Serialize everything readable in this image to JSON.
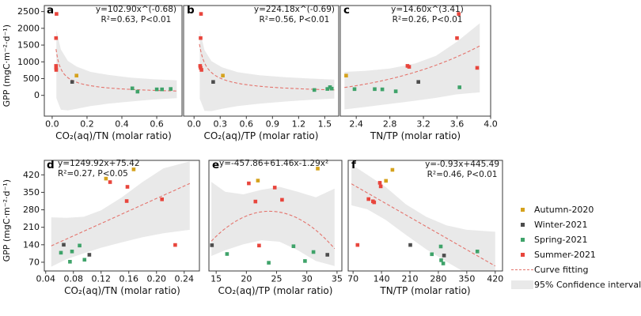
{
  "figure": {
    "ylabel": "GPP (mgC·m⁻²·d⁻¹)",
    "colors": {
      "autumn": "#d5a21d",
      "winter": "#4d4d4d",
      "spring": "#3fa36a",
      "summer": "#e8453c",
      "curve": "#e4736c",
      "band": "#e9e9e9",
      "axis": "#3a3a3a"
    },
    "legend": [
      {
        "label": "Autumn-2020",
        "color": "#d5a21d",
        "type": "square"
      },
      {
        "label": "Winter-2021",
        "color": "#4d4d4d",
        "type": "square"
      },
      {
        "label": "Spring-2021",
        "color": "#3fa36a",
        "type": "square"
      },
      {
        "label": "Summer-2021",
        "color": "#e8453c",
        "type": "square"
      },
      {
        "label": "Curve fitting",
        "color": "#e4736c",
        "type": "dash"
      },
      {
        "label": "95% Confidence interval",
        "color": "#e9e9e9",
        "type": "band"
      }
    ]
  },
  "chart_data": [
    {
      "id": "a",
      "type": "scatter",
      "equation": "y=102.90x^(-0.68)",
      "stats": "R²=0.63, P<0.01",
      "xlabel": "CO₂(aq)/TN (molar ratio)",
      "xlim": [
        -0.045,
        0.745
      ],
      "ylim": [
        -620,
        2680
      ],
      "xticks": [
        [
          0,
          "0.0"
        ],
        [
          0.2,
          "0.2"
        ],
        [
          0.4,
          "0.4"
        ],
        [
          0.6,
          "0.6"
        ]
      ],
      "yticks": [
        [
          0,
          "0"
        ],
        [
          500,
          "500"
        ],
        [
          1000,
          "1000"
        ],
        [
          1500,
          "1500"
        ],
        [
          2000,
          "2000"
        ],
        [
          2500,
          "2500"
        ]
      ],
      "show_ylabels": true,
      "curve": {
        "kind": "power",
        "p": [
          102.9,
          -0.68
        ],
        "range": [
          0.022,
          0.715
        ]
      },
      "band": [
        [
          0.024,
          -80,
          1950
        ],
        [
          0.05,
          -430,
          1370
        ],
        [
          0.09,
          -450,
          1030
        ],
        [
          0.14,
          -400,
          860
        ],
        [
          0.22,
          -320,
          700
        ],
        [
          0.32,
          -250,
          610
        ],
        [
          0.45,
          -185,
          530
        ],
        [
          0.58,
          -125,
          480
        ],
        [
          0.715,
          -85,
          450
        ]
      ],
      "series": {
        "autumn": [
          [
            0.14,
            590
          ]
        ],
        "winter": [
          [
            0.115,
            400
          ]
        ],
        "spring": [
          [
            0.46,
            210
          ],
          [
            0.49,
            110
          ],
          [
            0.6,
            180
          ],
          [
            0.63,
            180
          ],
          [
            0.68,
            190
          ]
        ],
        "summer": [
          [
            0.025,
            2430
          ],
          [
            0.022,
            1710
          ],
          [
            0.022,
            880
          ],
          [
            0.022,
            820
          ],
          [
            0.023,
            760
          ]
        ]
      }
    },
    {
      "id": "b",
      "type": "scatter",
      "equation": "y=224.18x^(-0.69)",
      "stats": "R²=0.56, P<0.01",
      "xlabel": "CO₂(aq)/TP (molar ratio)",
      "xlim": [
        -0.12,
        1.66
      ],
      "ylim": [
        -620,
        2680
      ],
      "xticks": [
        [
          0,
          "0.0"
        ],
        [
          0.3,
          "0.3"
        ],
        [
          0.6,
          "0.6"
        ],
        [
          0.9,
          "0.9"
        ],
        [
          1.2,
          "1.2"
        ],
        [
          1.5,
          "1.5"
        ]
      ],
      "yticks": [
        [
          0,
          "0"
        ],
        [
          500,
          "500"
        ],
        [
          1000,
          "1000"
        ],
        [
          1500,
          "1500"
        ],
        [
          2000,
          "2000"
        ],
        [
          2500,
          "2500"
        ]
      ],
      "show_ylabels": false,
      "curve": {
        "kind": "power",
        "p": [
          224.18,
          -0.69
        ],
        "range": [
          0.062,
          1.61
        ]
      },
      "band": [
        [
          0.065,
          -100,
          1950
        ],
        [
          0.12,
          -460,
          1350
        ],
        [
          0.2,
          -470,
          1020
        ],
        [
          0.32,
          -400,
          840
        ],
        [
          0.5,
          -320,
          690
        ],
        [
          0.75,
          -250,
          600
        ],
        [
          1.05,
          -185,
          540
        ],
        [
          1.35,
          -130,
          500
        ],
        [
          1.61,
          -95,
          470
        ]
      ],
      "series": {
        "autumn": [
          [
            0.33,
            590
          ]
        ],
        "winter": [
          [
            0.22,
            400
          ]
        ],
        "spring": [
          [
            1.38,
            160
          ],
          [
            1.53,
            190
          ],
          [
            1.56,
            245
          ],
          [
            1.58,
            200
          ]
        ],
        "summer": [
          [
            0.08,
            2430
          ],
          [
            0.075,
            1710
          ],
          [
            0.07,
            880
          ],
          [
            0.075,
            820
          ],
          [
            0.085,
            760
          ]
        ]
      }
    },
    {
      "id": "c",
      "type": "scatter",
      "equation": "y=14.60x^(3.41)",
      "stats": "R²=0.26, P<0.01",
      "xlabel": "TN/TP (molar ratio)",
      "xlim": [
        2.21,
        4.0
      ],
      "ylim": [
        -620,
        2680
      ],
      "xticks": [
        [
          2.4,
          "2.4"
        ],
        [
          2.8,
          "2.8"
        ],
        [
          3.2,
          "3.2"
        ],
        [
          3.6,
          "3.6"
        ],
        [
          4.0,
          "4.0"
        ]
      ],
      "yticks": [
        [
          0,
          "0"
        ],
        [
          500,
          "500"
        ],
        [
          1000,
          "1000"
        ],
        [
          1500,
          "1500"
        ],
        [
          2000,
          "2000"
        ],
        [
          2500,
          "2500"
        ]
      ],
      "show_ylabels": false,
      "curve": {
        "kind": "power",
        "p": [
          14.6,
          3.41
        ],
        "range": [
          2.26,
          3.87
        ]
      },
      "band": [
        [
          2.26,
          -420,
          700
        ],
        [
          2.5,
          -350,
          730
        ],
        [
          2.8,
          -255,
          800
        ],
        [
          3.1,
          -160,
          950
        ],
        [
          3.35,
          -75,
          1180
        ],
        [
          3.6,
          30,
          1600
        ],
        [
          3.87,
          90,
          2150
        ]
      ],
      "series": {
        "autumn": [
          [
            2.28,
            590
          ]
        ],
        "winter": [
          [
            3.14,
            400
          ]
        ],
        "spring": [
          [
            2.38,
            185
          ],
          [
            2.62,
            185
          ],
          [
            2.71,
            180
          ],
          [
            2.87,
            120
          ],
          [
            3.63,
            240
          ]
        ],
        "summer": [
          [
            3.62,
            2430
          ],
          [
            3.6,
            1710
          ],
          [
            3.01,
            880
          ],
          [
            3.03,
            850
          ],
          [
            3.84,
            820
          ]
        ]
      }
    },
    {
      "id": "d",
      "type": "scatter",
      "equation": "y=1249.92x+75.42",
      "stats": "R²=0.27, P<0.05",
      "xlabel": "CO₂(aq)/TN (molar ratio)",
      "xlim": [
        0.038,
        0.262
      ],
      "ylim": [
        35,
        478
      ],
      "xticks": [
        [
          0.04,
          "0.04"
        ],
        [
          0.08,
          "0.08"
        ],
        [
          0.12,
          "0.12"
        ],
        [
          0.16,
          "0.16"
        ],
        [
          0.2,
          "0.20"
        ],
        [
          0.24,
          "0.24"
        ]
      ],
      "yticks": [
        [
          70,
          "70"
        ],
        [
          140,
          "140"
        ],
        [
          210,
          "210"
        ],
        [
          280,
          "280"
        ],
        [
          350,
          "350"
        ],
        [
          420,
          "420"
        ]
      ],
      "show_ylabels": true,
      "curve": {
        "kind": "linear",
        "p": [
          1249.92,
          75.42
        ],
        "range": [
          0.048,
          0.248
        ]
      },
      "band": [
        [
          0.048,
          52,
          250
        ],
        [
          0.07,
          82,
          248
        ],
        [
          0.095,
          106,
          252
        ],
        [
          0.12,
          128,
          278
        ],
        [
          0.15,
          150,
          330
        ],
        [
          0.18,
          170,
          392
        ],
        [
          0.21,
          186,
          446
        ],
        [
          0.248,
          200,
          474
        ]
      ],
      "series": {
        "autumn": [
          [
            0.127,
            405
          ],
          [
            0.167,
            442
          ]
        ],
        "winter": [
          [
            0.066,
            140
          ],
          [
            0.103,
            100
          ]
        ],
        "spring": [
          [
            0.062,
            108
          ],
          [
            0.075,
            72
          ],
          [
            0.078,
            113
          ],
          [
            0.089,
            137
          ],
          [
            0.096,
            80
          ]
        ],
        "summer": [
          [
            0.133,
            391
          ],
          [
            0.158,
            372
          ],
          [
            0.157,
            315
          ],
          [
            0.208,
            322
          ],
          [
            0.227,
            139
          ]
        ]
      }
    },
    {
      "id": "e",
      "type": "scatter",
      "equation": "y=-457.86+61.46x-1.29x²",
      "stats": "",
      "xlabel": "CO₂(aq)/TP (molar ratio)",
      "xlim": [
        13.8,
        35.8
      ],
      "ylim": [
        35,
        478
      ],
      "xticks": [
        [
          15,
          "15"
        ],
        [
          20,
          "20"
        ],
        [
          25,
          "25"
        ],
        [
          30,
          "30"
        ],
        [
          35,
          "35"
        ]
      ],
      "yticks": [
        [
          70,
          "70"
        ],
        [
          140,
          "140"
        ],
        [
          210,
          "210"
        ],
        [
          280,
          "280"
        ],
        [
          350,
          "350"
        ],
        [
          420,
          "420"
        ]
      ],
      "show_ylabels": false,
      "curve": {
        "kind": "quad",
        "p": [
          -457.86,
          61.46,
          -1.29
        ],
        "range": [
          14.2,
          34.6
        ]
      },
      "band": [
        [
          14.2,
          95,
          392
        ],
        [
          16.5,
          118,
          352
        ],
        [
          19.5,
          142,
          342
        ],
        [
          22.5,
          158,
          360
        ],
        [
          25.5,
          152,
          372
        ],
        [
          28.5,
          118,
          352
        ],
        [
          31.5,
          75,
          330
        ],
        [
          34.6,
          55,
          365
        ]
      ],
      "series": {
        "autumn": [
          [
            21.9,
            397
          ],
          [
            31.8,
            445
          ]
        ],
        "winter": [
          [
            14.3,
            138
          ],
          [
            33.4,
            100
          ]
        ],
        "spring": [
          [
            16.8,
            103
          ],
          [
            23.7,
            68
          ],
          [
            27.8,
            134
          ],
          [
            29.7,
            75
          ],
          [
            31.1,
            111
          ]
        ],
        "summer": [
          [
            20.4,
            386
          ],
          [
            24.7,
            369
          ],
          [
            21.5,
            313
          ],
          [
            25.9,
            320
          ],
          [
            22.1,
            137
          ]
        ]
      }
    },
    {
      "id": "f",
      "type": "scatter",
      "equation": "y=-0.93x+445.49",
      "stats": "R²=0.46, P<0.01",
      "xlabel": "TN/TP (molar ratio)",
      "xlim": [
        58,
        438
      ],
      "ylim": [
        35,
        478
      ],
      "xticks": [
        [
          70,
          "70"
        ],
        [
          140,
          "140"
        ],
        [
          210,
          "210"
        ],
        [
          280,
          "280"
        ],
        [
          350,
          "350"
        ],
        [
          420,
          "420"
        ]
      ],
      "yticks": [
        [
          70,
          "70"
        ],
        [
          140,
          "140"
        ],
        [
          210,
          "210"
        ],
        [
          280,
          "280"
        ],
        [
          350,
          "350"
        ],
        [
          420,
          "420"
        ]
      ],
      "show_ylabels": false,
      "curve": {
        "kind": "linear",
        "p": [
          -0.93,
          445.49
        ],
        "range": [
          66,
          420
        ]
      },
      "band": [
        [
          66,
          298,
          462
        ],
        [
          105,
          282,
          420
        ],
        [
          150,
          240,
          372
        ],
        [
          200,
          180,
          302
        ],
        [
          250,
          122,
          252
        ],
        [
          300,
          72,
          218
        ],
        [
          350,
          25,
          200
        ],
        [
          420,
          -35,
          192
        ]
      ],
      "series": {
        "autumn": [
          [
            167,
            440
          ],
          [
            151,
            396
          ]
        ],
        "winter": [
          [
            211,
            139
          ],
          [
            294,
            97
          ]
        ],
        "spring": [
          [
            264,
            102
          ],
          [
            286,
            133
          ],
          [
            287,
            78
          ],
          [
            292,
            65
          ],
          [
            376,
            113
          ]
        ],
        "summer": [
          [
            136,
            388
          ],
          [
            138,
            374
          ],
          [
            108,
            323
          ],
          [
            119,
            314
          ],
          [
            122,
            310
          ],
          [
            81,
            139
          ]
        ]
      }
    }
  ]
}
